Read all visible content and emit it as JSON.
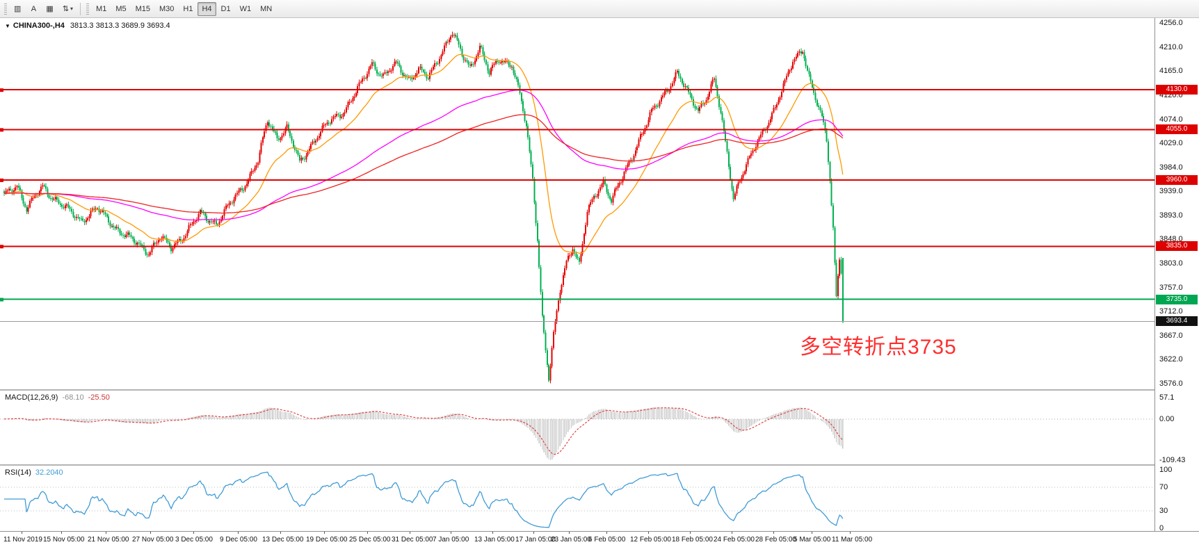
{
  "toolbar": {
    "tool_buttons": [
      {
        "name": "chart-window-icon-button",
        "glyph": "▥"
      },
      {
        "name": "text-annotation-button",
        "glyph": "A"
      },
      {
        "name": "select-tool-button",
        "glyph": "▦"
      },
      {
        "name": "scroll-tool-button",
        "glyph": "⇅",
        "caret": "▾"
      }
    ],
    "timeframes": [
      "M1",
      "M5",
      "M15",
      "M30",
      "H1",
      "H4",
      "D1",
      "W1",
      "MN"
    ],
    "active_timeframe": "H4"
  },
  "chart": {
    "title": {
      "collapse_glyph": "▼",
      "symbol": "CHINA300-,H4",
      "ohlc": "3813.3 3813.3 3689.9 3693.4"
    },
    "annotation": {
      "text": "多空转折点3735",
      "color": "#ff2e2e"
    },
    "axis": {
      "price_max": 4256.0,
      "price_min": 3576.0,
      "price_ticks": [
        4256.0,
        4210.0,
        4165.0,
        4120.0,
        4074.0,
        4029.0,
        3984.0,
        3939.0,
        3893.0,
        3848.0,
        3803.0,
        3757.0,
        3712.0,
        3667.0,
        3622.0,
        3576.0
      ]
    },
    "levels": [
      {
        "price": 4130.0,
        "label": "4130.0",
        "color": "#dd0000"
      },
      {
        "price": 4055.0,
        "label": "4055.0",
        "color": "#dd0000"
      },
      {
        "price": 3960.0,
        "label": "3960.0",
        "color": "#dd0000"
      },
      {
        "price": 3835.0,
        "label": "3835.0",
        "color": "#dd0000"
      },
      {
        "price": 3735.0,
        "label": "3735.0",
        "color": "#00a651"
      }
    ],
    "current_price": {
      "value": 3693.4,
      "label": "3693.4",
      "tag_bg": "#111111",
      "line_color": "#999999"
    },
    "macd": {
      "label": "MACD(12,26,9)",
      "main_value": "-68.10",
      "signal_value": "-25.50",
      "ticks": [
        {
          "v": 57.1,
          "label": "57.1"
        },
        {
          "v": 0,
          "label": "0.00"
        },
        {
          "v": -109.43,
          "label": "-109.43"
        }
      ],
      "hist_color": "#c6c6c6",
      "signal_color": "#e04545"
    },
    "rsi": {
      "label": "RSI(14)",
      "value": "32.2040",
      "ticks": [
        {
          "v": 100,
          "label": "100"
        },
        {
          "v": 70,
          "label": "70"
        },
        {
          "v": 30,
          "label": "30"
        },
        {
          "v": 0,
          "label": "0"
        }
      ],
      "levels": [
        70,
        30
      ],
      "line_color": "#3e9bd6"
    },
    "time_axis": {
      "labels": [
        "11 Nov 2019",
        "15 Nov 05:00",
        "21 Nov 05:00",
        "27 Nov 05:00",
        "3 Dec 05:00",
        "9 Dec 05:00",
        "13 Dec 05:00",
        "19 Dec 05:00",
        "25 Dec 05:00",
        "31 Dec 05:00",
        "7 Jan 05:00",
        "13 Jan 05:00",
        "17 Jan 05:00",
        "23 Jan 05:00",
        "6 Feb 05:00",
        "12 Feb 05:00",
        "18 Feb 05:00",
        "24 Feb 05:00",
        "28 Feb 05:00",
        "5 Mar 05:00",
        "11 Mar 05:00"
      ],
      "x": [
        5,
        62,
        126,
        190,
        252,
        316,
        377,
        440,
        502,
        563,
        622,
        682,
        741,
        792,
        846,
        906,
        966,
        1026,
        1086,
        1141,
        1196
      ]
    }
  },
  "chart_data": {
    "type": "candlestick",
    "symbol": "CHINA300-",
    "timeframe": "H4",
    "title": "CHINA300-,H4 3813.3 3813.3 3689.9 3693.4",
    "price_range": [
      3576.0,
      4256.0
    ],
    "bars_total": 523,
    "candle_colors": {
      "up": "#e60000",
      "down": "#00b050"
    },
    "last_candle": {
      "open": 3813.3,
      "high": 3813.3,
      "low": 3689.9,
      "close": 3693.4
    },
    "horizontal_levels": [
      4130.0,
      4055.0,
      3960.0,
      3835.0,
      3735.0
    ],
    "close_path_anchors": [
      [
        0,
        3930
      ],
      [
        8,
        3952
      ],
      [
        14,
        3905
      ],
      [
        24,
        3948
      ],
      [
        30,
        3928
      ],
      [
        36,
        3912
      ],
      [
        48,
        3884
      ],
      [
        58,
        3906
      ],
      [
        70,
        3868
      ],
      [
        80,
        3846
      ],
      [
        90,
        3824
      ],
      [
        97,
        3852
      ],
      [
        104,
        3832
      ],
      [
        112,
        3856
      ],
      [
        122,
        3896
      ],
      [
        132,
        3878
      ],
      [
        142,
        3920
      ],
      [
        152,
        3962
      ],
      [
        158,
        3996
      ],
      [
        164,
        4072
      ],
      [
        170,
        4040
      ],
      [
        176,
        4058
      ],
      [
        184,
        3992
      ],
      [
        194,
        4040
      ],
      [
        202,
        4068
      ],
      [
        212,
        4092
      ],
      [
        222,
        4140
      ],
      [
        229,
        4180
      ],
      [
        236,
        4155
      ],
      [
        244,
        4178
      ],
      [
        252,
        4150
      ],
      [
        258,
        4168
      ],
      [
        264,
        4152
      ],
      [
        272,
        4200
      ],
      [
        279,
        4238
      ],
      [
        285,
        4196
      ],
      [
        290,
        4172
      ],
      [
        296,
        4212
      ],
      [
        302,
        4160
      ],
      [
        308,
        4188
      ],
      [
        316,
        4178
      ],
      [
        321,
        4120
      ],
      [
        325,
        4060
      ],
      [
        329,
        3960
      ],
      [
        332,
        3850
      ],
      [
        335,
        3700
      ],
      [
        339,
        3585
      ],
      [
        342,
        3665
      ],
      [
        346,
        3752
      ],
      [
        350,
        3806
      ],
      [
        354,
        3836
      ],
      [
        358,
        3800
      ],
      [
        363,
        3898
      ],
      [
        368,
        3932
      ],
      [
        373,
        3958
      ],
      [
        378,
        3922
      ],
      [
        384,
        3958
      ],
      [
        390,
        3998
      ],
      [
        396,
        4042
      ],
      [
        403,
        4086
      ],
      [
        410,
        4118
      ],
      [
        419,
        4162
      ],
      [
        426,
        4120
      ],
      [
        432,
        4092
      ],
      [
        437,
        4116
      ],
      [
        442,
        4148
      ],
      [
        446,
        4086
      ],
      [
        450,
        4010
      ],
      [
        454,
        3928
      ],
      [
        458,
        3962
      ],
      [
        463,
        3992
      ],
      [
        468,
        4026
      ],
      [
        474,
        4062
      ],
      [
        480,
        4096
      ],
      [
        486,
        4142
      ],
      [
        491,
        4186
      ],
      [
        497,
        4208
      ],
      [
        501,
        4152
      ],
      [
        505,
        4112
      ],
      [
        509,
        4076
      ],
      [
        512,
        4040
      ],
      [
        514,
        3962
      ],
      [
        516,
        3870
      ],
      [
        517,
        3800
      ],
      [
        518,
        3742
      ],
      [
        519,
        3784
      ],
      [
        520,
        3813
      ],
      [
        521,
        3788
      ],
      [
        522,
        3693
      ]
    ],
    "indicators": [
      {
        "type": "ma",
        "period": 30,
        "color": "#ff9900"
      },
      {
        "type": "ma",
        "period": 150,
        "color": "#ff00ff"
      },
      {
        "type": "ma",
        "period": 250,
        "color": "#ee2222"
      },
      {
        "type": "macd",
        "params": [
          12,
          26,
          9
        ],
        "current_main": -68.1,
        "current_signal": -25.5,
        "range": [
          -109.43,
          57.1
        ]
      },
      {
        "type": "rsi",
        "period": 14,
        "current": 32.204,
        "range": [
          0,
          100
        ],
        "levels": [
          70,
          30
        ]
      }
    ]
  }
}
